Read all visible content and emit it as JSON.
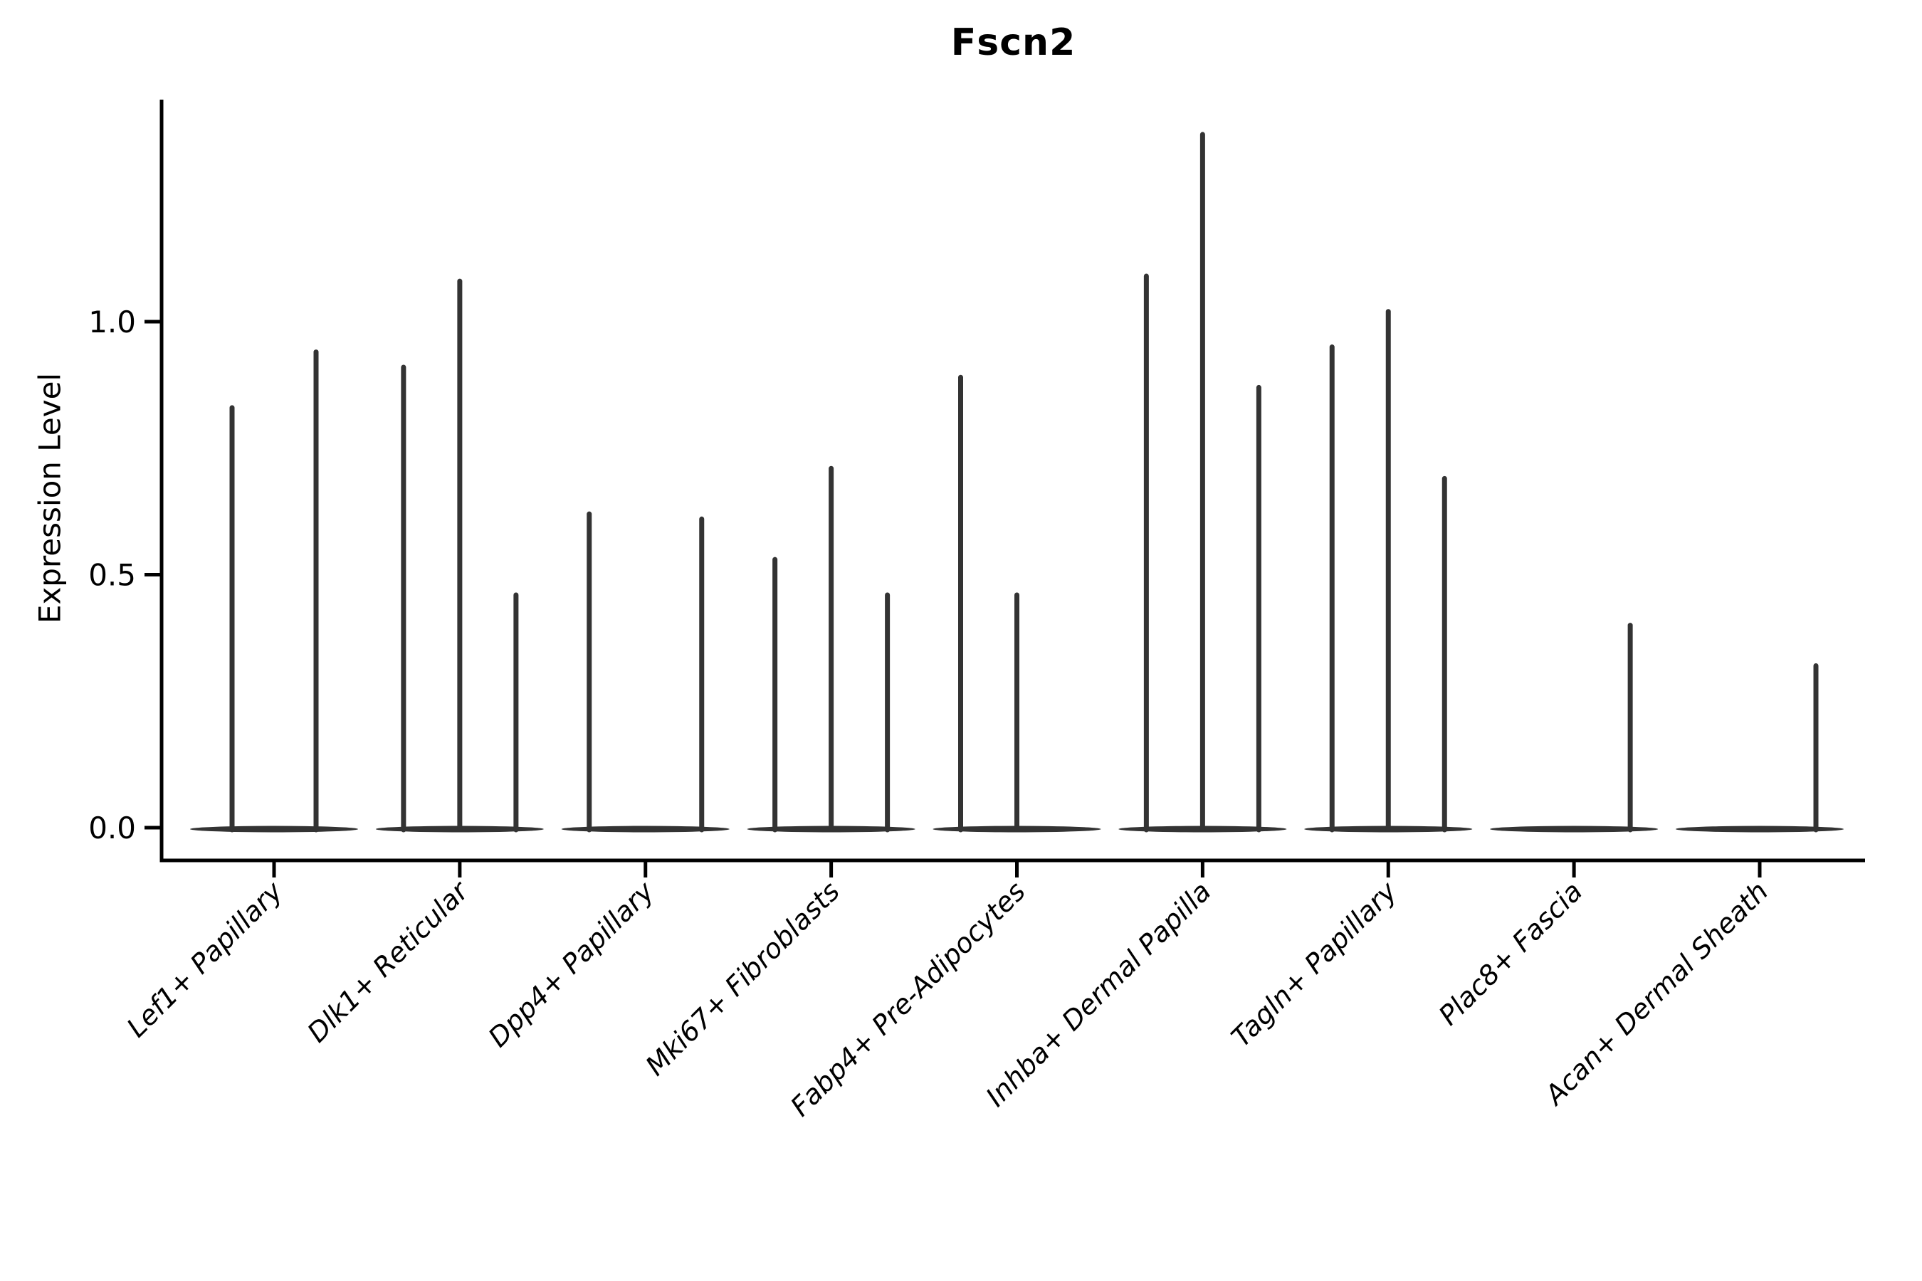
{
  "chart_data": {
    "type": "violin",
    "title": "Fscn2",
    "ylabel": "Expression Level",
    "xlabel": "",
    "ytick_labels": [
      "0.0",
      "0.5",
      "1.0"
    ],
    "yticks": [
      0.0,
      0.5,
      1.0
    ],
    "ylim": [
      0.0,
      1.44
    ],
    "legend": "none",
    "grid": false,
    "background": "#ffffff",
    "categories": [
      "Lef1+ Papillary",
      "Dlk1+ Reticular",
      "Dpp4+ Papillary",
      "Mki67+ Fibroblasts",
      "Fabp4+ Pre-Adipocytes",
      "Inhba+ Dermal Papilla",
      "Tagln+ Papillary",
      "Plac8+ Fascia",
      "Acan+ Dermal Sheath"
    ],
    "violins": [
      {
        "category": "Lef1+ Papillary",
        "maxima": [
          0.83,
          0.94
        ]
      },
      {
        "category": "Dlk1+ Reticular",
        "maxima": [
          0.91,
          1.08,
          0.46
        ]
      },
      {
        "category": "Dpp4+ Papillary",
        "maxima": [
          0.62,
          0.0,
          0.61
        ]
      },
      {
        "category": "Mki67+ Fibroblasts",
        "maxima": [
          0.53,
          0.71,
          0.46
        ]
      },
      {
        "category": "Fabp4+ Pre-Adipocytes",
        "maxima": [
          0.89,
          0.46,
          0.0
        ]
      },
      {
        "category": "Inhba+ Dermal Papilla",
        "maxima": [
          1.09,
          1.37,
          0.87
        ]
      },
      {
        "category": "Tagln+ Papillary",
        "maxima": [
          0.95,
          1.02,
          0.69
        ]
      },
      {
        "category": "Plac8+ Fascia",
        "maxima": [
          0.0,
          0.0,
          0.4
        ]
      },
      {
        "category": "Acan+ Dermal Sheath",
        "maxima": [
          0.0,
          0.0,
          0.32
        ]
      }
    ],
    "colors": {
      "violin_line": "#333333",
      "axis": "#000000",
      "text": "#000000",
      "background": "#ffffff"
    }
  }
}
